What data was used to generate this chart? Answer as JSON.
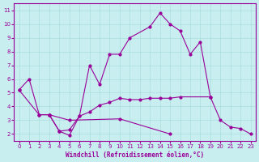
{
  "title": "",
  "xlabel": "Windchill (Refroidissement éolien,°C)",
  "background_color": "#c8eef0",
  "grid_color": "#aadddd",
  "line_color": "#990099",
  "xlim": [
    -0.5,
    23.5
  ],
  "ylim": [
    1.5,
    11.5
  ],
  "yticks": [
    2,
    3,
    4,
    5,
    6,
    7,
    8,
    9,
    10,
    11
  ],
  "xticks": [
    0,
    1,
    2,
    3,
    4,
    5,
    6,
    7,
    8,
    9,
    10,
    11,
    12,
    13,
    14,
    15,
    16,
    17,
    18,
    19,
    20,
    21,
    22,
    23
  ],
  "series1_x": [
    0,
    1,
    2,
    3,
    4,
    5,
    6,
    7,
    8,
    9,
    10,
    11,
    13,
    14,
    15,
    16,
    17,
    18,
    19
  ],
  "series1_y": [
    5.2,
    6.0,
    3.4,
    3.4,
    2.2,
    1.9,
    3.3,
    7.0,
    5.6,
    7.8,
    7.8,
    9.0,
    9.8,
    10.8,
    10.0,
    9.5,
    7.8,
    8.7,
    4.7
  ],
  "series2_x": [
    0,
    2,
    3,
    4,
    5,
    6,
    7,
    8,
    9,
    10,
    11,
    12,
    13,
    14,
    15,
    16,
    19,
    20,
    21,
    22,
    23
  ],
  "series2_y": [
    5.2,
    3.4,
    3.4,
    2.2,
    2.3,
    3.3,
    3.6,
    4.1,
    4.3,
    4.6,
    4.5,
    4.5,
    4.6,
    4.6,
    4.6,
    4.7,
    4.7,
    3.0,
    2.5,
    2.4,
    2.0
  ],
  "series3_x": [
    3,
    5,
    10,
    15
  ],
  "series3_y": [
    3.4,
    3.0,
    3.1,
    2.0
  ],
  "tick_fontsize": 5,
  "xlabel_fontsize": 5.5,
  "lw": 0.8,
  "ms": 2.0
}
